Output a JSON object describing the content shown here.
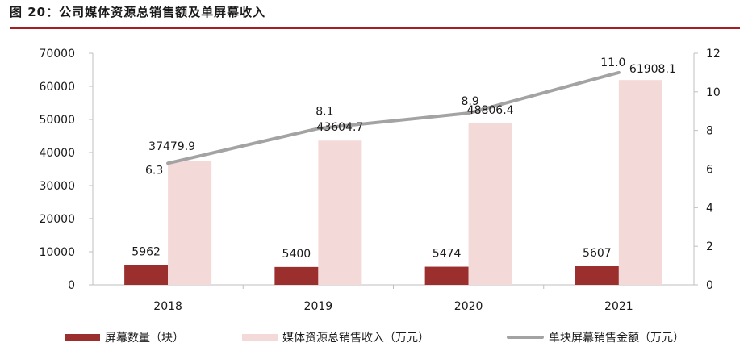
{
  "header": {
    "title": "图 20：公司媒体资源总销售额及单屏幕收入"
  },
  "colors": {
    "screens": "#9b2f2e",
    "revenue": "#f3d9d7",
    "per_screen": "#a3a3a3",
    "title_rule": "#a31f22"
  },
  "chart_data": {
    "type": "bar",
    "categories": [
      "2018",
      "2019",
      "2020",
      "2021"
    ],
    "series": [
      {
        "name": "屏幕数量（块）",
        "kind": "bar",
        "axis": "left",
        "values": [
          5962,
          5400,
          5474,
          5607
        ],
        "labels": [
          "5962",
          "5400",
          "5474",
          "5607"
        ]
      },
      {
        "name": "媒体资源总销售收入（万元）",
        "kind": "bar",
        "axis": "left",
        "values": [
          37479.9,
          43604.7,
          48806.4,
          61908.1
        ],
        "labels": [
          "37479.9",
          "43604.7",
          "48806.4",
          "61908.1"
        ]
      },
      {
        "name": "单块屏幕销售金额（万元）",
        "kind": "line",
        "axis": "right",
        "values": [
          6.3,
          8.1,
          8.9,
          11.0
        ],
        "labels": [
          "6.3",
          "8.1",
          "8.9",
          "11.0"
        ]
      }
    ],
    "y_left": {
      "lim": [
        0,
        70000
      ],
      "ticks": [
        "0",
        "10000",
        "20000",
        "30000",
        "40000",
        "50000",
        "60000",
        "70000"
      ]
    },
    "y_right": {
      "lim": [
        0,
        12
      ],
      "ticks": [
        "0",
        "2",
        "4",
        "6",
        "8",
        "10",
        "12"
      ]
    },
    "grid": false,
    "legend_position": "bottom"
  }
}
